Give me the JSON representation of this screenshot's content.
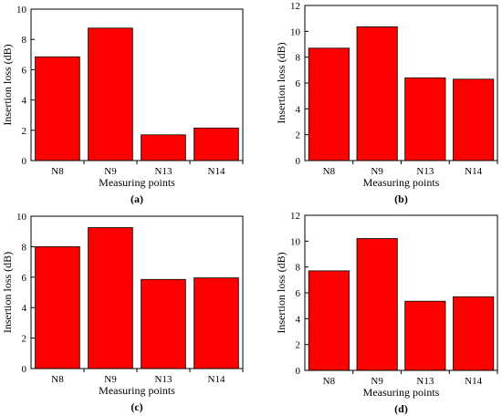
{
  "chart_data": [
    {
      "type": "bar",
      "panel_label": "(a)",
      "categories": [
        "N8",
        "N9",
        "N13",
        "N14"
      ],
      "values": [
        6.85,
        8.75,
        1.7,
        2.15
      ],
      "ylabel": "Insertion loss (dB)",
      "xlabel": "Measuring points",
      "ylim": [
        0,
        10
      ],
      "yticks": [
        0,
        2,
        4,
        6,
        8,
        10
      ],
      "bar_color": "#ff0000",
      "grid": false
    },
    {
      "type": "bar",
      "panel_label": "(b)",
      "categories": [
        "N8",
        "N9",
        "N13",
        "N14"
      ],
      "values": [
        8.7,
        10.35,
        6.4,
        6.3
      ],
      "ylabel": "Insertion loss (dB)",
      "xlabel": "Measuring points",
      "ylim": [
        0,
        12
      ],
      "yticks": [
        0,
        2,
        4,
        6,
        8,
        10,
        12
      ],
      "bar_color": "#ff0000",
      "grid": false
    },
    {
      "type": "bar",
      "panel_label": "(c)",
      "categories": [
        "N8",
        "N9",
        "N13",
        "N14"
      ],
      "values": [
        8.0,
        9.25,
        5.85,
        5.95
      ],
      "ylabel": "Insertion loss (dB)",
      "xlabel": "Measuring points",
      "ylim": [
        0,
        10
      ],
      "yticks": [
        0,
        2,
        4,
        6,
        8,
        10
      ],
      "bar_color": "#ff0000",
      "grid": false
    },
    {
      "type": "bar",
      "panel_label": "(d)",
      "categories": [
        "N8",
        "N9",
        "N13",
        "N14"
      ],
      "values": [
        7.7,
        10.2,
        5.35,
        5.7
      ],
      "ylabel": "Insertion loss (dB)",
      "xlabel": "Measuring points",
      "ylim": [
        0,
        12
      ],
      "yticks": [
        0,
        2,
        4,
        6,
        8,
        10,
        12
      ],
      "bar_color": "#ff0000",
      "grid": false
    }
  ]
}
